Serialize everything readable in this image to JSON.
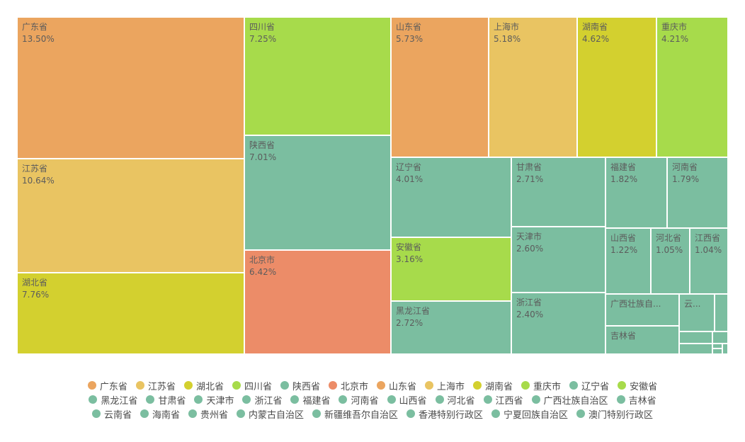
{
  "chart_data": {
    "type": "treemap",
    "title": "",
    "colors": {
      "orange": "#eba55f",
      "yellow": "#e9c462",
      "olive": "#d3d02f",
      "green": "#a7db4b",
      "teal": "#7bbea0",
      "red": "#ec8c68"
    },
    "items": [
      {
        "name": "广东省",
        "value": 13.5,
        "label": "13.50%",
        "color": "#eba55f"
      },
      {
        "name": "江苏省",
        "value": 10.64,
        "label": "10.64%",
        "color": "#e9c462"
      },
      {
        "name": "湖北省",
        "value": 7.76,
        "label": "7.76%",
        "color": "#d3d02f"
      },
      {
        "name": "四川省",
        "value": 7.25,
        "label": "7.25%",
        "color": "#a7db4b"
      },
      {
        "name": "陕西省",
        "value": 7.01,
        "label": "7.01%",
        "color": "#7bbea0"
      },
      {
        "name": "北京市",
        "value": 6.42,
        "label": "6.42%",
        "color": "#ec8c68"
      },
      {
        "name": "山东省",
        "value": 5.73,
        "label": "5.73%",
        "color": "#eba55f"
      },
      {
        "name": "上海市",
        "value": 5.18,
        "label": "5.18%",
        "color": "#e9c462"
      },
      {
        "name": "湖南省",
        "value": 4.62,
        "label": "4.62%",
        "color": "#d3d02f"
      },
      {
        "name": "重庆市",
        "value": 4.21,
        "label": "4.21%",
        "color": "#a7db4b"
      },
      {
        "name": "辽宁省",
        "value": 4.01,
        "label": "4.01%",
        "color": "#7bbea0"
      },
      {
        "name": "安徽省",
        "value": 3.16,
        "label": "3.16%",
        "color": "#a7db4b"
      },
      {
        "name": "黑龙江省",
        "value": 2.72,
        "label": "2.72%",
        "color": "#7bbea0"
      },
      {
        "name": "甘肃省",
        "value": 2.71,
        "label": "2.71%",
        "color": "#7bbea0"
      },
      {
        "name": "天津市",
        "value": 2.6,
        "label": "2.60%",
        "color": "#7bbea0"
      },
      {
        "name": "浙江省",
        "value": 2.4,
        "label": "2.40%",
        "color": "#7bbea0"
      },
      {
        "name": "福建省",
        "value": 1.82,
        "label": "1.82%",
        "color": "#7bbea0"
      },
      {
        "name": "河南省",
        "value": 1.79,
        "label": "1.79%",
        "color": "#7bbea0"
      },
      {
        "name": "山西省",
        "value": 1.22,
        "label": "1.22%",
        "color": "#7bbea0"
      },
      {
        "name": "河北省",
        "value": 1.05,
        "label": "1.05%",
        "color": "#7bbea0"
      },
      {
        "name": "江西省",
        "value": 1.04,
        "label": "1.04%",
        "color": "#7bbea0"
      },
      {
        "name": "广西壮族自治区",
        "value": 0.8,
        "label": "广西壮族自...",
        "color": "#7bbea0"
      },
      {
        "name": "吉林省",
        "value": 0.7,
        "label": "吉林省",
        "color": "#7bbea0"
      },
      {
        "name": "云南省",
        "value": 0.45,
        "label": "云...",
        "color": "#7bbea0"
      },
      {
        "name": "海南省",
        "value": 0.18,
        "label": "",
        "color": "#7bbea0"
      },
      {
        "name": "贵州省",
        "value": 0.16,
        "label": "",
        "color": "#7bbea0"
      },
      {
        "name": "内蒙古自治区",
        "value": 0.15,
        "label": "",
        "color": "#7bbea0"
      },
      {
        "name": "新疆维吾尔自治区",
        "value": 0.12,
        "label": "",
        "color": "#7bbea0"
      },
      {
        "name": "香港特别行政区",
        "value": 0.1,
        "label": "",
        "color": "#7bbea0"
      },
      {
        "name": "宁夏回族自治区",
        "value": 0.05,
        "label": "",
        "color": "#7bbea0"
      },
      {
        "name": "澳门特别行政区",
        "value": 0.02,
        "label": "",
        "color": "#7bbea0"
      }
    ],
    "legend": {
      "placement": "bottom",
      "rows": [
        [
          "广东省",
          "江苏省",
          "湖北省",
          "四川省",
          "陕西省",
          "北京市",
          "山东省",
          "上海市",
          "湖南省",
          "重庆市",
          "辽宁省",
          "安徽省"
        ],
        [
          "黑龙江省",
          "甘肃省",
          "天津市",
          "浙江省",
          "福建省",
          "河南省",
          "山西省",
          "河北省",
          "江西省",
          "广西壮族自治区",
          "吉林省"
        ],
        [
          "云南省",
          "海南省",
          "贵州省",
          "内蒙古自治区",
          "新疆维吾尔自治区",
          "香港特别行政区",
          "宁夏回族自治区",
          "澳门特别行政区"
        ]
      ]
    }
  }
}
